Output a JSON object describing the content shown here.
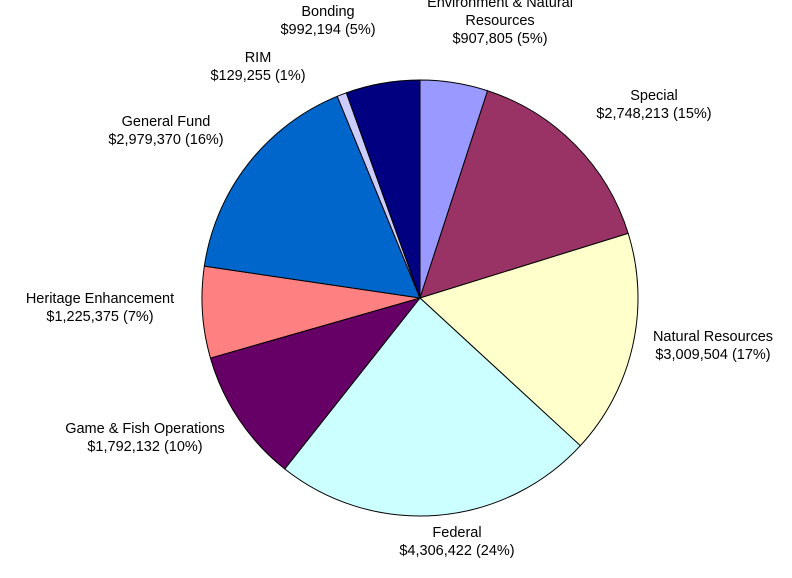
{
  "chart_data": {
    "type": "pie",
    "title": "",
    "start_angle_deg": 90,
    "direction": "clockwise",
    "slices": [
      {
        "label_lines": [
          "Environment & Natural",
          "Resources"
        ],
        "value": 907805,
        "value_text": "$907,805 (5%)",
        "color": "#9999ff"
      },
      {
        "label_lines": [
          "Special"
        ],
        "value": 2748213,
        "value_text": "$2,748,213 (15%)",
        "color": "#993366"
      },
      {
        "label_lines": [
          "Natural Resources"
        ],
        "value": 3009504,
        "value_text": "$3,009,504 (17%)",
        "color": "#ffffcc"
      },
      {
        "label_lines": [
          "Federal"
        ],
        "value": 4306422,
        "value_text": "$4,306,422 (24%)",
        "color": "#ccffff"
      },
      {
        "label_lines": [
          "Game & Fish Operations"
        ],
        "value": 1792132,
        "value_text": "$1,792,132 (10%)",
        "color": "#660066"
      },
      {
        "label_lines": [
          "Heritage Enhancement"
        ],
        "value": 1225375,
        "value_text": "$1,225,375 (7%)",
        "color": "#ff8080"
      },
      {
        "label_lines": [
          "General Fund"
        ],
        "value": 2979370,
        "value_text": "$2,979,370 (16%)",
        "color": "#0066cc"
      },
      {
        "label_lines": [
          "RIM"
        ],
        "value": 129255,
        "value_text": "$129,255 (1%)",
        "color": "#ccccff"
      },
      {
        "label_lines": [
          "Bonding"
        ],
        "value": 992194,
        "value_text": "$992,194 (5%)",
        "color": "#000080"
      }
    ]
  }
}
